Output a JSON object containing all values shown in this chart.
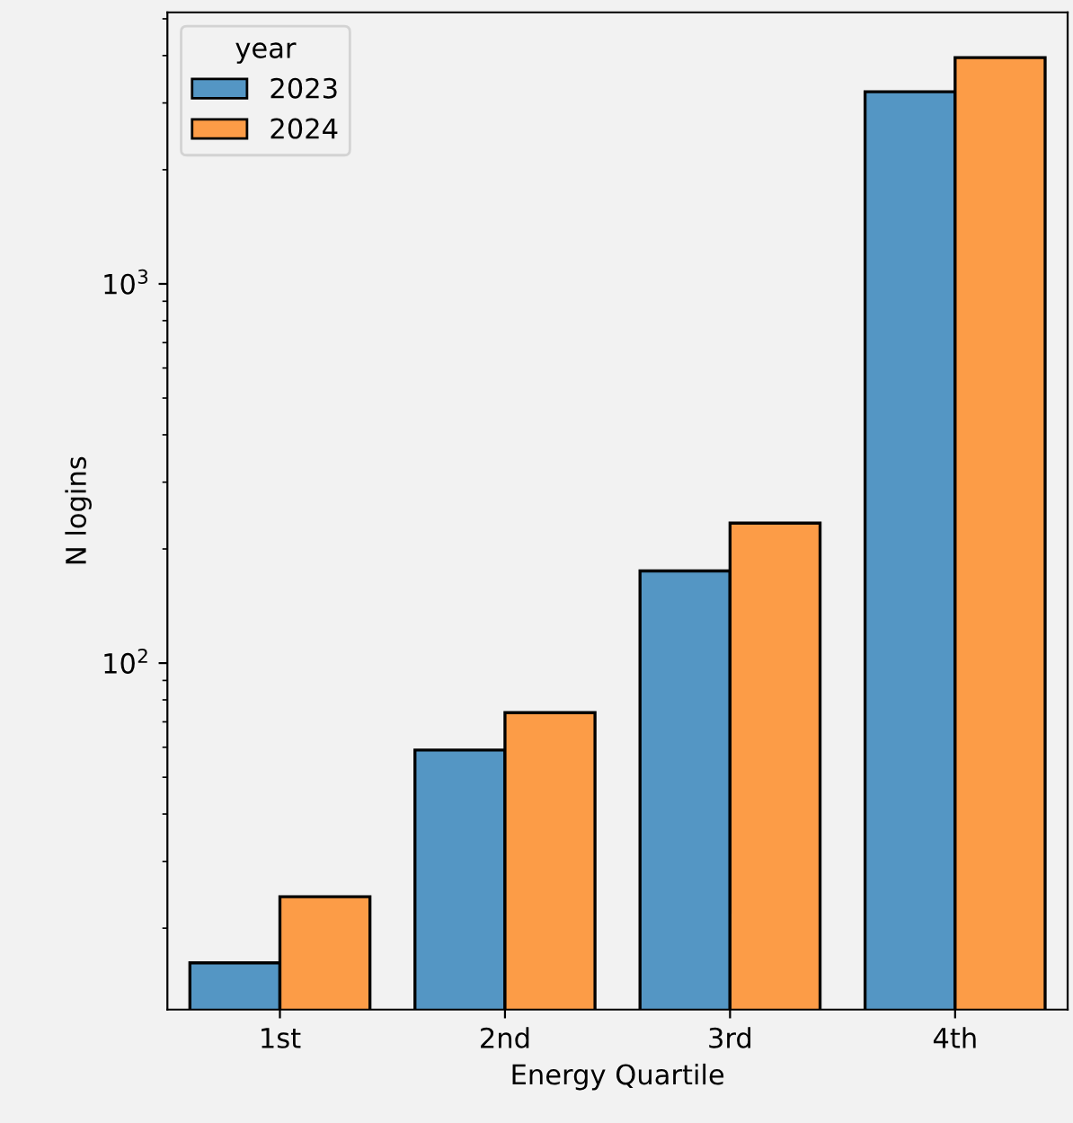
{
  "chart_data": {
    "type": "bar",
    "xlabel": "Energy Quartile",
    "ylabel": "N logins",
    "legend_title": "year",
    "categories": [
      "1st",
      "2nd",
      "3rd",
      "4th"
    ],
    "series": [
      {
        "name": "2023",
        "color": "#5496c4",
        "values": [
          16.2,
          59,
          175,
          3210
        ]
      },
      {
        "name": "2024",
        "color": "#fc9c47",
        "values": [
          24.2,
          74,
          234,
          3950
        ]
      }
    ],
    "log": "y",
    "ylim": [
      12.2,
      5200
    ],
    "yticks": [
      {
        "value": 100,
        "label": "10$^{2}$"
      },
      {
        "value": 1000,
        "label": "10$^{3}$"
      }
    ],
    "legend": "top left",
    "grid": false
  }
}
